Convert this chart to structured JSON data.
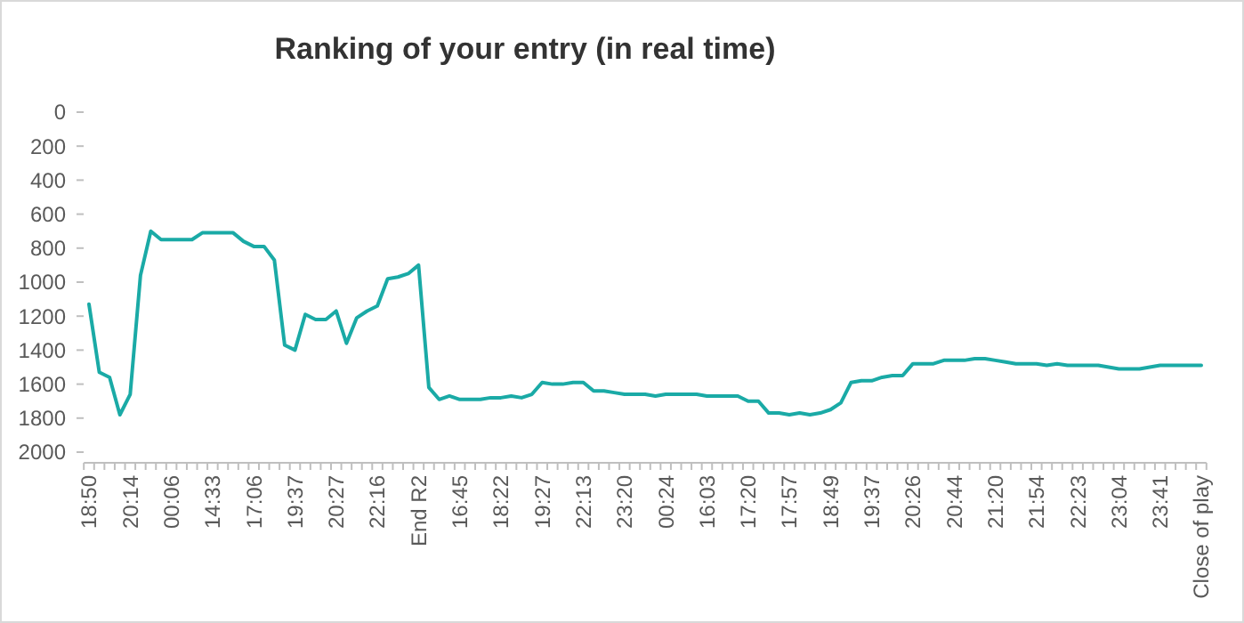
{
  "chart_data": {
    "type": "line",
    "title": "Ranking of your entry (in real time)",
    "categories": [
      "18:50",
      null,
      null,
      null,
      "20:14",
      null,
      null,
      null,
      "00:06",
      null,
      null,
      null,
      "14:33",
      null,
      null,
      null,
      "17:06",
      null,
      null,
      null,
      "19:37",
      null,
      null,
      null,
      "20:27",
      null,
      null,
      null,
      "22:16",
      null,
      null,
      null,
      "End R2",
      null,
      null,
      null,
      "16:45",
      null,
      null,
      null,
      "18:22",
      null,
      null,
      null,
      "19:27",
      null,
      null,
      null,
      "22:13",
      null,
      null,
      null,
      "23:20",
      null,
      null,
      null,
      "00:24",
      null,
      null,
      null,
      "16:03",
      null,
      null,
      null,
      "17:20",
      null,
      null,
      null,
      "17:57",
      null,
      null,
      null,
      "18:49",
      null,
      null,
      null,
      "19:37",
      null,
      null,
      null,
      "20:26",
      null,
      null,
      null,
      "20:44",
      null,
      null,
      null,
      "21:20",
      null,
      null,
      null,
      "21:54",
      null,
      null,
      null,
      "22:23",
      null,
      null,
      null,
      "23:04",
      null,
      null,
      null,
      "23:41",
      null,
      null,
      null,
      "Close of play"
    ],
    "series": [
      {
        "color": "#1aaaa6",
        "values": [
          1130,
          1530,
          1560,
          1780,
          1660,
          960,
          700,
          750,
          750,
          750,
          750,
          710,
          710,
          710,
          710,
          760,
          790,
          790,
          870,
          1370,
          1400,
          1190,
          1220,
          1220,
          1170,
          1360,
          1210,
          1170,
          1140,
          980,
          970,
          950,
          900,
          1620,
          1690,
          1670,
          1690,
          1690,
          1690,
          1680,
          1680,
          1670,
          1680,
          1660,
          1590,
          1600,
          1600,
          1590,
          1590,
          1640,
          1640,
          1650,
          1660,
          1660,
          1660,
          1670,
          1660,
          1660,
          1660,
          1660,
          1670,
          1670,
          1670,
          1670,
          1700,
          1700,
          1770,
          1770,
          1780,
          1770,
          1780,
          1770,
          1750,
          1710,
          1590,
          1580,
          1580,
          1560,
          1550,
          1550,
          1480,
          1480,
          1480,
          1460,
          1460,
          1460,
          1450,
          1450,
          1460,
          1470,
          1480,
          1480,
          1480,
          1490,
          1480,
          1490,
          1490,
          1490,
          1490,
          1500,
          1510,
          1510,
          1510,
          1500,
          1490,
          1490,
          1490,
          1490,
          1490
        ]
      }
    ],
    "ylim": [
      2000,
      0
    ],
    "yticks": [
      0,
      200,
      400,
      600,
      800,
      1000,
      1200,
      1400,
      1600,
      1800,
      2000
    ]
  }
}
